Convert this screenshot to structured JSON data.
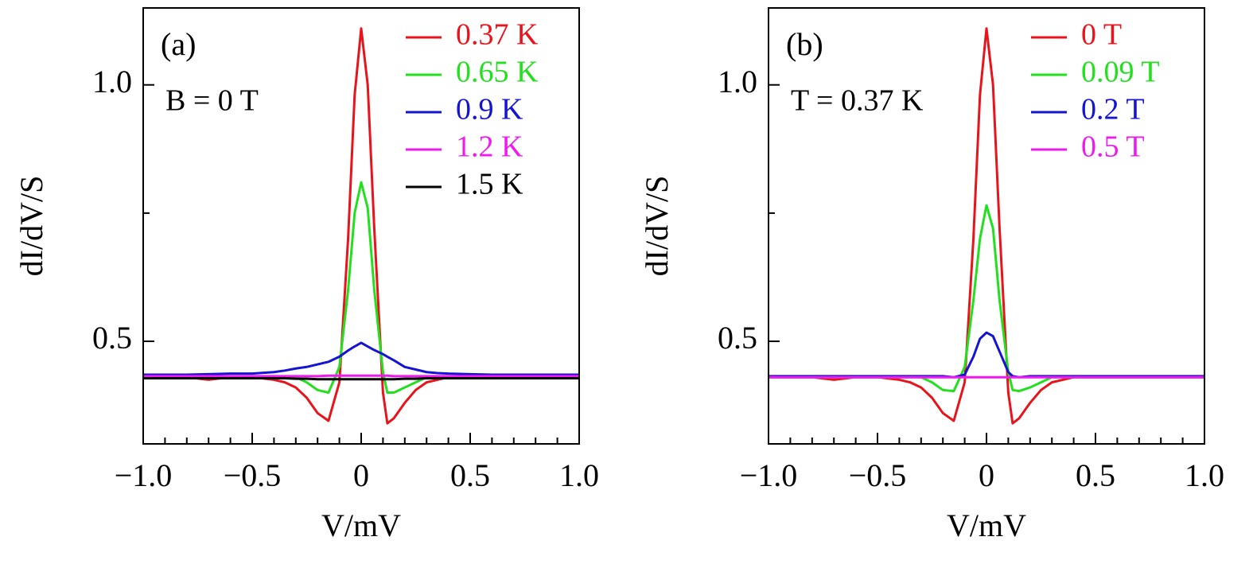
{
  "chart_data": [
    {
      "type": "line",
      "panel_label": "(a)",
      "annotation": "B = 0 T",
      "xlabel": "V/mV",
      "ylabel": "dI/dV/S",
      "x": [
        -1,
        -0.9,
        -0.8,
        -0.7,
        -0.6,
        -0.5,
        -0.4,
        -0.35,
        -0.3,
        -0.25,
        -0.2,
        -0.15,
        -0.1,
        -0.06,
        -0.03,
        0,
        0.03,
        0.06,
        0.1,
        0.12,
        0.15,
        0.2,
        0.25,
        0.3,
        0.35,
        0.4,
        0.5,
        0.6,
        0.7,
        0.8,
        0.9,
        1
      ],
      "series": [
        {
          "name": "0.37 K",
          "color": "#e8141c",
          "values": [
            0.43,
            0.43,
            0.43,
            0.425,
            0.43,
            0.43,
            0.425,
            0.42,
            0.41,
            0.39,
            0.36,
            0.345,
            0.42,
            0.7,
            0.98,
            1.11,
            1.0,
            0.72,
            0.4,
            0.34,
            0.35,
            0.38,
            0.405,
            0.42,
            0.425,
            0.43,
            0.43,
            0.43,
            0.43,
            0.43,
            0.43,
            0.43
          ]
        },
        {
          "name": "0.65 K",
          "color": "#22e01e",
          "values": [
            0.43,
            0.43,
            0.43,
            0.43,
            0.43,
            0.43,
            0.43,
            0.43,
            0.43,
            0.42,
            0.405,
            0.4,
            0.45,
            0.6,
            0.75,
            0.81,
            0.76,
            0.6,
            0.44,
            0.4,
            0.4,
            0.41,
            0.42,
            0.43,
            0.43,
            0.43,
            0.43,
            0.43,
            0.43,
            0.43,
            0.43,
            0.43
          ]
        },
        {
          "name": "0.9 K",
          "color": "#1414d2",
          "values": [
            0.435,
            0.435,
            0.435,
            0.436,
            0.437,
            0.437,
            0.44,
            0.443,
            0.447,
            0.45,
            0.455,
            0.46,
            0.47,
            0.482,
            0.49,
            0.497,
            0.49,
            0.483,
            0.475,
            0.47,
            0.463,
            0.45,
            0.445,
            0.44,
            0.438,
            0.437,
            0.436,
            0.435,
            0.435,
            0.435,
            0.435,
            0.435
          ]
        },
        {
          "name": "1.2 K",
          "color": "#ee1aee",
          "values": [
            0.432,
            0.432,
            0.432,
            0.432,
            0.432,
            0.432,
            0.432,
            0.432,
            0.432,
            0.432,
            0.432,
            0.433,
            0.433,
            0.433,
            0.433,
            0.433,
            0.433,
            0.433,
            0.433,
            0.433,
            0.432,
            0.432,
            0.432,
            0.432,
            0.432,
            0.432,
            0.432,
            0.432,
            0.432,
            0.432,
            0.432,
            0.432
          ]
        },
        {
          "name": "1.5 K",
          "color": "#000000",
          "values": [
            0.428,
            0.428,
            0.428,
            0.428,
            0.428,
            0.428,
            0.428,
            0.428,
            0.427,
            0.427,
            0.426,
            0.426,
            0.426,
            0.426,
            0.426,
            0.426,
            0.426,
            0.426,
            0.426,
            0.426,
            0.426,
            0.427,
            0.427,
            0.428,
            0.428,
            0.428,
            0.428,
            0.428,
            0.428,
            0.428,
            0.428,
            0.428
          ]
        }
      ],
      "legend": "upper right",
      "xlim": [
        -1,
        1
      ],
      "ylim": [
        0.3,
        1.15
      ],
      "xticks": [
        {
          "value": -1,
          "label": "−1.0"
        },
        {
          "value": -0.5,
          "label": "−0.5"
        },
        0,
        0.5,
        {
          "value": 1,
          "label": "1.0"
        }
      ],
      "yticks": [
        0.5,
        {
          "value": 1,
          "label": "1.0"
        }
      ],
      "xminor_ticks": [
        -0.9,
        -0.8,
        -0.7,
        -0.6,
        -0.4,
        -0.3,
        -0.2,
        -0.1,
        0.1,
        0.2,
        0.3,
        0.4,
        0.6,
        0.7,
        0.8,
        0.9
      ],
      "yminor_ticks": [
        0.75
      ]
    },
    {
      "type": "line",
      "panel_label": "(b)",
      "annotation": "T = 0.37 K",
      "xlabel": "V/mV",
      "ylabel": "dI/dV/S",
      "x": [
        -1,
        -0.9,
        -0.8,
        -0.7,
        -0.6,
        -0.5,
        -0.4,
        -0.35,
        -0.3,
        -0.25,
        -0.2,
        -0.15,
        -0.1,
        -0.06,
        -0.03,
        0,
        0.03,
        0.06,
        0.1,
        0.12,
        0.15,
        0.2,
        0.25,
        0.3,
        0.35,
        0.4,
        0.5,
        0.6,
        0.7,
        0.8,
        0.9,
        1
      ],
      "series": [
        {
          "name": "0 T",
          "color": "#e8141c",
          "values": [
            0.43,
            0.43,
            0.43,
            0.425,
            0.43,
            0.43,
            0.425,
            0.42,
            0.41,
            0.39,
            0.36,
            0.345,
            0.42,
            0.7,
            0.98,
            1.11,
            1.0,
            0.72,
            0.4,
            0.34,
            0.35,
            0.38,
            0.405,
            0.42,
            0.425,
            0.43,
            0.43,
            0.43,
            0.43,
            0.43,
            0.43,
            0.43
          ]
        },
        {
          "name": "0.09 T",
          "color": "#22e01e",
          "values": [
            0.43,
            0.43,
            0.43,
            0.43,
            0.43,
            0.43,
            0.43,
            0.43,
            0.43,
            0.42,
            0.405,
            0.403,
            0.45,
            0.58,
            0.7,
            0.765,
            0.72,
            0.58,
            0.44,
            0.405,
            0.403,
            0.41,
            0.42,
            0.43,
            0.43,
            0.43,
            0.43,
            0.43,
            0.43,
            0.43,
            0.43,
            0.43
          ]
        },
        {
          "name": "0.2 T",
          "color": "#1414d2",
          "values": [
            0.432,
            0.432,
            0.432,
            0.432,
            0.432,
            0.432,
            0.432,
            0.432,
            0.432,
            0.432,
            0.432,
            0.43,
            0.435,
            0.47,
            0.505,
            0.517,
            0.51,
            0.48,
            0.44,
            0.432,
            0.43,
            0.432,
            0.432,
            0.432,
            0.432,
            0.432,
            0.432,
            0.432,
            0.432,
            0.432,
            0.432,
            0.432
          ]
        },
        {
          "name": "0.5 T",
          "color": "#ee1aee",
          "values": [
            0.43,
            0.43,
            0.43,
            0.43,
            0.43,
            0.43,
            0.43,
            0.43,
            0.43,
            0.43,
            0.43,
            0.43,
            0.43,
            0.43,
            0.43,
            0.43,
            0.43,
            0.43,
            0.43,
            0.43,
            0.43,
            0.43,
            0.43,
            0.43,
            0.43,
            0.43,
            0.43,
            0.43,
            0.43,
            0.43,
            0.43,
            0.43
          ]
        }
      ],
      "legend": "upper right",
      "xlim": [
        -1,
        1
      ],
      "ylim": [
        0.3,
        1.15
      ],
      "xticks": [
        {
          "value": -1,
          "label": "−1.0"
        },
        {
          "value": -0.5,
          "label": "−0.5"
        },
        0,
        0.5,
        {
          "value": 1,
          "label": "1.0"
        }
      ],
      "yticks": [
        0.5,
        {
          "value": 1,
          "label": "1.0"
        }
      ],
      "xminor_ticks": [
        -0.9,
        -0.8,
        -0.7,
        -0.6,
        -0.4,
        -0.3,
        -0.2,
        -0.1,
        0.1,
        0.2,
        0.3,
        0.4,
        0.6,
        0.7,
        0.8,
        0.9
      ],
      "yminor_ticks": [
        0.75
      ]
    }
  ]
}
